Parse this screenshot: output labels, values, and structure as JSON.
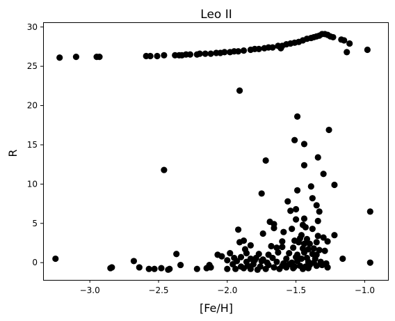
{
  "chart_data": {
    "type": "scatter",
    "title": "Leo II",
    "xlabel": "[Fe/H]",
    "ylabel": "R",
    "xlim": [
      -3.34,
      -0.83
    ],
    "ylim": [
      -2.2,
      30.6
    ],
    "xticks": [
      -3.0,
      -2.5,
      -2.0,
      -1.5,
      -1.0
    ],
    "xtick_labels": [
      "−3.0",
      "−2.5",
      "−2.0",
      "−1.5",
      "−1.0"
    ],
    "yticks": [
      0,
      5,
      10,
      15,
      20,
      25,
      30
    ],
    "ytick_labels": [
      "0",
      "5",
      "10",
      "15",
      "20",
      "25",
      "30"
    ],
    "grid": false,
    "marker_color": "#000000",
    "points": [
      [
        -3.22,
        26.1
      ],
      [
        -3.1,
        26.2
      ],
      [
        -2.95,
        26.2
      ],
      [
        -2.93,
        26.2
      ],
      [
        -2.59,
        26.3
      ],
      [
        -2.56,
        26.3
      ],
      [
        -2.51,
        26.3
      ],
      [
        -2.46,
        26.4
      ],
      [
        -2.38,
        26.4
      ],
      [
        -2.35,
        26.4
      ],
      [
        -2.33,
        26.4
      ],
      [
        -2.3,
        26.5
      ],
      [
        -2.27,
        26.5
      ],
      [
        -2.22,
        26.5
      ],
      [
        -2.2,
        26.6
      ],
      [
        -2.16,
        26.6
      ],
      [
        -2.12,
        26.6
      ],
      [
        -2.08,
        26.7
      ],
      [
        -2.05,
        26.7
      ],
      [
        -2.02,
        26.8
      ],
      [
        -1.98,
        26.8
      ],
      [
        -1.95,
        26.9
      ],
      [
        -1.92,
        26.9
      ],
      [
        -1.88,
        27.0
      ],
      [
        -1.83,
        27.1
      ],
      [
        -1.8,
        27.2
      ],
      [
        -1.77,
        27.2
      ],
      [
        -1.73,
        27.3
      ],
      [
        -1.7,
        27.4
      ],
      [
        -1.67,
        27.4
      ],
      [
        -1.63,
        27.6
      ],
      [
        -1.6,
        27.6
      ],
      [
        -1.57,
        27.8
      ],
      [
        -1.54,
        27.9
      ],
      [
        -1.51,
        28.0
      ],
      [
        -1.48,
        28.1
      ],
      [
        -1.45,
        28.3
      ],
      [
        -1.42,
        28.5
      ],
      [
        -1.39,
        28.6
      ],
      [
        -1.37,
        28.7
      ],
      [
        -1.35,
        28.8
      ],
      [
        -1.33,
        28.9
      ],
      [
        -1.31,
        29.1
      ],
      [
        -1.29,
        29.1
      ],
      [
        -1.27,
        29.0
      ],
      [
        -1.25,
        28.8
      ],
      [
        -1.23,
        28.7
      ],
      [
        -1.17,
        28.4
      ],
      [
        -1.15,
        28.3
      ],
      [
        -1.11,
        27.9
      ],
      [
        -0.98,
        27.1
      ],
      [
        -1.13,
        26.8
      ],
      [
        -1.61,
        27.3
      ],
      [
        -1.91,
        21.9
      ],
      [
        -1.49,
        18.6
      ],
      [
        -1.26,
        16.9
      ],
      [
        -1.51,
        15.6
      ],
      [
        -1.44,
        15.1
      ],
      [
        -1.34,
        13.4
      ],
      [
        -1.72,
        13.0
      ],
      [
        -2.46,
        11.8
      ],
      [
        -1.44,
        12.4
      ],
      [
        -1.3,
        11.3
      ],
      [
        -1.22,
        9.9
      ],
      [
        -1.49,
        9.2
      ],
      [
        -1.75,
        8.8
      ],
      [
        -1.39,
        9.7
      ],
      [
        -1.38,
        8.2
      ],
      [
        -1.56,
        7.8
      ],
      [
        -1.35,
        7.3
      ],
      [
        -1.54,
        6.6
      ],
      [
        -1.5,
        6.8
      ],
      [
        -1.33,
        6.5
      ],
      [
        -0.96,
        6.5
      ],
      [
        -1.5,
        5.5
      ],
      [
        -1.44,
        5.6
      ],
      [
        -1.34,
        5.3
      ],
      [
        -1.69,
        5.2
      ],
      [
        -1.66,
        4.9
      ],
      [
        -1.45,
        4.8
      ],
      [
        -1.43,
        4.5
      ],
      [
        -1.38,
        4.3
      ],
      [
        -1.66,
        4.4
      ],
      [
        -1.92,
        4.2
      ],
      [
        -1.53,
        4.3
      ],
      [
        -1.59,
        3.9
      ],
      [
        -1.74,
        3.7
      ],
      [
        -1.46,
        3.5
      ],
      [
        -1.34,
        3.4
      ],
      [
        -1.3,
        3.2
      ],
      [
        -1.22,
        3.5
      ],
      [
        -1.47,
        3.1
      ],
      [
        -1.42,
        3.0
      ],
      [
        -1.6,
        2.7
      ],
      [
        -1.88,
        2.8
      ],
      [
        -1.91,
        2.6
      ],
      [
        -1.51,
        2.8
      ],
      [
        -1.48,
        2.6
      ],
      [
        -1.44,
        2.4
      ],
      [
        -1.4,
        2.4
      ],
      [
        -1.35,
        2.6
      ],
      [
        -1.27,
        2.7
      ],
      [
        -1.83,
        2.2
      ],
      [
        -1.68,
        2.1
      ],
      [
        -1.6,
        2.0
      ],
      [
        -1.64,
        1.9
      ],
      [
        -1.52,
        1.9
      ],
      [
        -1.45,
        1.8
      ],
      [
        -1.41,
        1.7
      ],
      [
        -1.37,
        1.8
      ],
      [
        -1.33,
        1.6
      ],
      [
        -1.29,
        1.5
      ],
      [
        -1.87,
        1.7
      ],
      [
        -1.98,
        1.2
      ],
      [
        -1.86,
        1.2
      ],
      [
        -1.77,
        1.1
      ],
      [
        -1.7,
        1.0
      ],
      [
        -1.63,
        1.3
      ],
      [
        -1.55,
        1.2
      ],
      [
        -1.49,
        1.0
      ],
      [
        -1.44,
        1.3
      ],
      [
        -1.38,
        1.1
      ],
      [
        -1.35,
        1.0
      ],
      [
        -2.37,
        1.1
      ],
      [
        -2.07,
        1.0
      ],
      [
        -2.04,
        0.8
      ],
      [
        -1.95,
        0.6
      ],
      [
        -1.9,
        0.7
      ],
      [
        -1.83,
        0.5
      ],
      [
        -1.79,
        0.6
      ],
      [
        -1.74,
        0.4
      ],
      [
        -1.67,
        0.6
      ],
      [
        -1.57,
        0.5
      ],
      [
        -1.5,
        0.7
      ],
      [
        -1.46,
        0.5
      ],
      [
        -1.42,
        0.6
      ],
      [
        -1.36,
        0.5
      ],
      [
        -1.16,
        0.5
      ],
      [
        -3.25,
        0.5
      ],
      [
        -2.68,
        0.2
      ],
      [
        -2.0,
        0.3
      ],
      [
        -1.93,
        0.2
      ],
      [
        -1.86,
        0.1
      ],
      [
        -1.8,
        0.3
      ],
      [
        -1.75,
        0.2
      ],
      [
        -1.71,
        0.0
      ],
      [
        -1.64,
        0.1
      ],
      [
        -1.59,
        -0.1
      ],
      [
        -1.53,
        0.0
      ],
      [
        -1.49,
        0.2
      ],
      [
        -1.41,
        0.1
      ],
      [
        -1.37,
        0.0
      ],
      [
        -1.32,
        0.1
      ],
      [
        -1.28,
        -0.1
      ],
      [
        -0.96,
        0.0
      ],
      [
        -2.34,
        -0.3
      ],
      [
        -2.13,
        -0.3
      ],
      [
        -1.96,
        -0.2
      ],
      [
        -1.9,
        -0.5
      ],
      [
        -1.85,
        -0.4
      ],
      [
        -1.81,
        -0.2
      ],
      [
        -1.76,
        -0.5
      ],
      [
        -1.7,
        -0.3
      ],
      [
        -1.66,
        -0.6
      ],
      [
        -1.6,
        -0.4
      ],
      [
        -1.55,
        -0.2
      ],
      [
        -1.51,
        -0.5
      ],
      [
        -1.47,
        -0.4
      ],
      [
        -1.43,
        -0.5
      ],
      [
        -1.4,
        -0.3
      ],
      [
        -1.35,
        -0.4
      ],
      [
        -1.31,
        -0.3
      ],
      [
        -1.27,
        -0.6
      ],
      [
        -2.85,
        -0.7
      ],
      [
        -2.84,
        -0.6
      ],
      [
        -2.64,
        -0.6
      ],
      [
        -2.57,
        -0.8
      ],
      [
        -2.53,
        -0.8
      ],
      [
        -2.48,
        -0.7
      ],
      [
        -2.43,
        -0.9
      ],
      [
        -2.42,
        -0.8
      ],
      [
        -2.22,
        -0.8
      ],
      [
        -2.15,
        -0.7
      ],
      [
        -2.12,
        -0.6
      ],
      [
        -2.0,
        -0.8
      ],
      [
        -1.94,
        -0.8
      ],
      [
        -1.88,
        -0.7
      ],
      [
        -1.83,
        -0.8
      ],
      [
        -1.78,
        -0.9
      ],
      [
        -1.72,
        -0.8
      ],
      [
        -1.62,
        -0.8
      ],
      [
        -1.57,
        -0.6
      ],
      [
        -1.52,
        -0.7
      ],
      [
        -1.45,
        -0.8
      ],
      [
        -1.41,
        -0.7
      ]
    ]
  }
}
